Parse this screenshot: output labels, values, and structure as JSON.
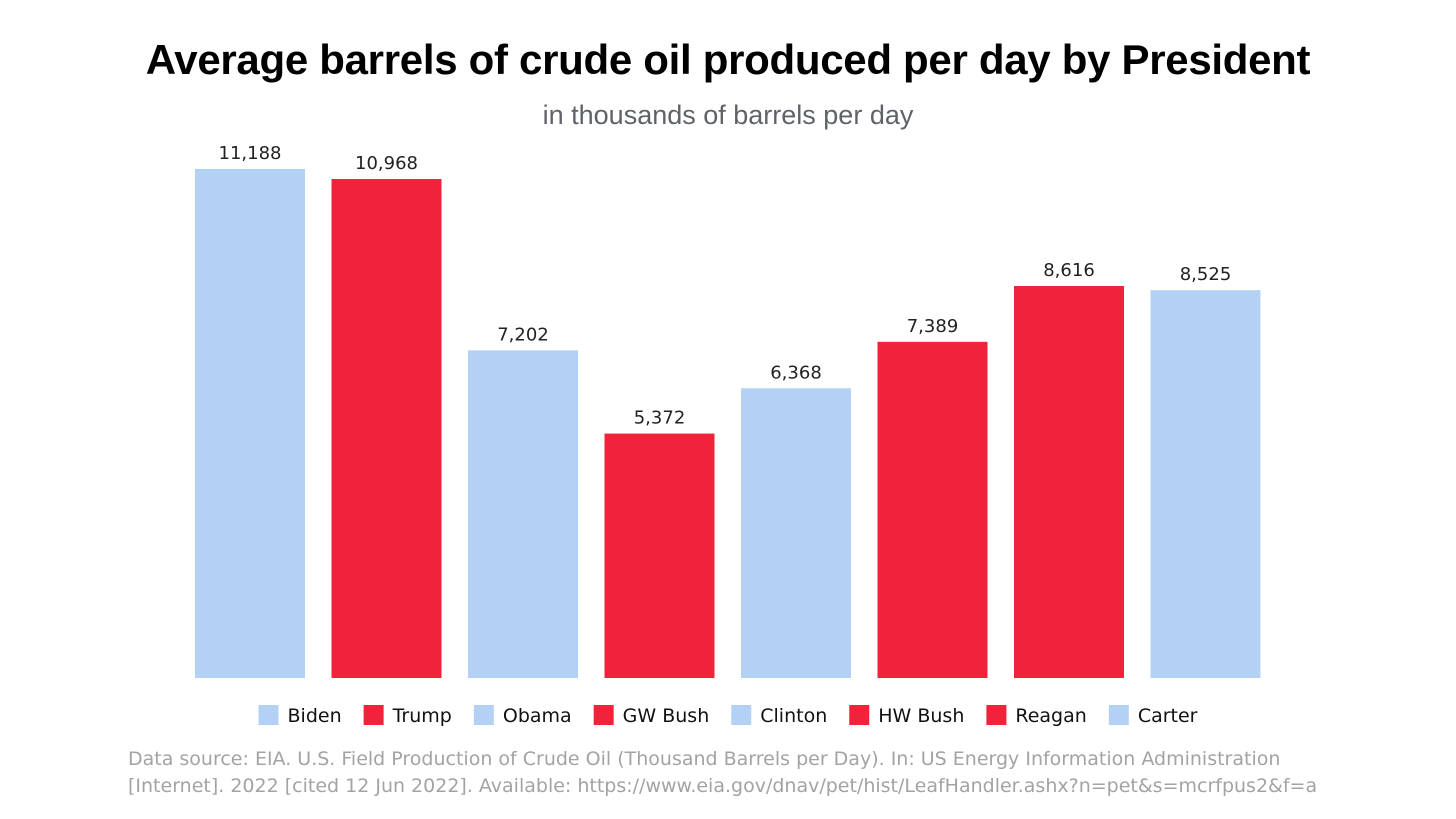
{
  "chart_data": {
    "type": "bar",
    "title": "Average barrels of crude oil produced per day by President",
    "subtitle": "in thousands of barrels per day",
    "categories": [
      "Biden",
      "Trump",
      "Obama",
      "GW Bush",
      "Clinton",
      "HW Bush",
      "Reagan",
      "Carter"
    ],
    "values": [
      11188,
      10968,
      7202,
      5372,
      6368,
      7389,
      8616,
      8525
    ],
    "value_labels": [
      "11,188",
      "10,968",
      "7,202",
      "5,372",
      "6,368",
      "7,389",
      "8,616",
      "8,525"
    ],
    "bar_colors": [
      "#b3d1f4",
      "#f0233b",
      "#b3d1f4",
      "#f0233b",
      "#b3d1f4",
      "#f0233b",
      "#f0233b",
      "#b3d1f4"
    ],
    "xlabel": "",
    "ylabel": "",
    "ylim": [
      0,
      11188
    ],
    "grid": false,
    "legend_position": "bottom"
  },
  "colors": {
    "blue": "#b3d1f4",
    "red": "#f0233b"
  },
  "source": {
    "line1": "Data source: EIA. U.S. Field Production of Crude Oil (Thousand Barrels per Day). In: US Energy Information Administration",
    "line2": "[Internet]. 2022 [cited 12 Jun 2022]. Available: https://www.eia.gov/dnav/pet/hist/LeafHandler.ashx?n=pet&s=mcrfpus2&f=a"
  }
}
